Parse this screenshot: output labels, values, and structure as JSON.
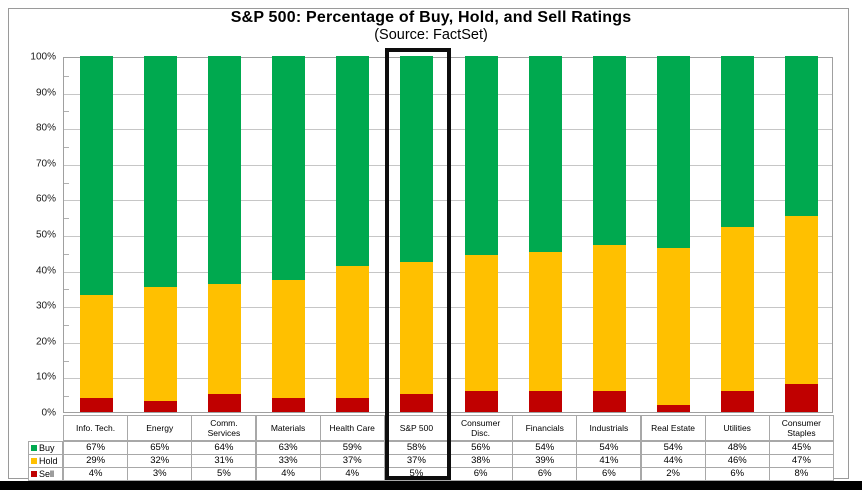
{
  "header": {
    "title": "S&P 500: Percentage of Buy, Hold, and Sell Ratings",
    "subtitle": "(Source: FactSet)"
  },
  "chart_data": {
    "type": "bar",
    "stacked": true,
    "title": "S&P 500: Percentage of Buy, Hold, and Sell Ratings",
    "subtitle": "(Source: FactSet)",
    "categories": [
      "Info. Tech.",
      "Energy",
      "Comm. Services",
      "Materials",
      "Health Care",
      "S&P 500",
      "Consumer Disc.",
      "Financials",
      "Industrials",
      "Real Estate",
      "Utilities",
      "Consumer Staples"
    ],
    "series": [
      {
        "name": "Buy",
        "color": "#00A94F",
        "values": [
          67,
          65,
          64,
          63,
          59,
          58,
          56,
          54,
          54,
          54,
          48,
          45
        ]
      },
      {
        "name": "Hold",
        "color": "#FFC000",
        "values": [
          29,
          32,
          31,
          33,
          37,
          37,
          38,
          39,
          41,
          44,
          46,
          47
        ]
      },
      {
        "name": "Sell",
        "color": "#C00000",
        "values": [
          4,
          3,
          5,
          4,
          4,
          5,
          6,
          6,
          6,
          2,
          6,
          8
        ]
      }
    ],
    "ylim": [
      0,
      100
    ],
    "y_tick_labels": [
      "0%",
      "10%",
      "20%",
      "30%",
      "40%",
      "50%",
      "60%",
      "70%",
      "80%",
      "90%",
      "100%"
    ],
    "y_minor_tick_step": 5,
    "grid": true,
    "legend_position": "table-left-column",
    "value_suffix": "%",
    "highlight_category": "S&P 500",
    "highlight_color": "#0d0d0d"
  }
}
